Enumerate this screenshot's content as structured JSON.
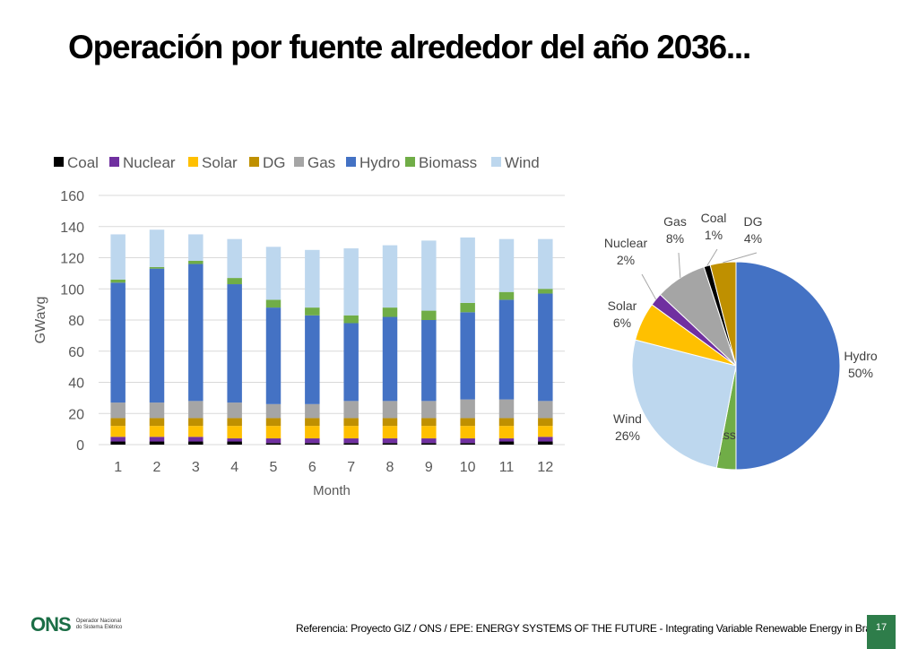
{
  "slide": {
    "title": "Operación por fuente alrededor del año 2036...",
    "reference": "Referencia: Proyecto GIZ / ONS / EPE: ENERGY SYSTEMS OF THE FUTURE - Integrating Variable Renewable Energy in Brazil",
    "page_number": "17",
    "logo_text": "ONS",
    "logo_tagline": "Operador Nacional\ndo Sistema Elétrico"
  },
  "chart_data": [
    {
      "type": "bar",
      "stacked": true,
      "xlabel": "Month",
      "ylabel": "GWavg",
      "ylim": [
        0,
        160
      ],
      "yticks": [
        0,
        20,
        40,
        60,
        80,
        100,
        120,
        140,
        160
      ],
      "legend_position": "top",
      "grid": true,
      "categories": [
        "1",
        "2",
        "3",
        "4",
        "5",
        "6",
        "7",
        "8",
        "9",
        "10",
        "11",
        "12"
      ],
      "series": [
        {
          "name": "Coal",
          "color": "#000000",
          "values": [
            2,
            2,
            2,
            2,
            1,
            1,
            1,
            1,
            1,
            1,
            2,
            2
          ]
        },
        {
          "name": "Nuclear",
          "color": "#7030a0",
          "values": [
            3,
            3,
            3,
            2,
            3,
            3,
            3,
            3,
            3,
            3,
            2,
            3
          ]
        },
        {
          "name": "Solar",
          "color": "#ffc000",
          "values": [
            7,
            7,
            7,
            8,
            8,
            8,
            8,
            8,
            8,
            8,
            8,
            7
          ]
        },
        {
          "name": "DG",
          "color": "#bf9000",
          "values": [
            5,
            5,
            5,
            5,
            5,
            5,
            5,
            5,
            5,
            5,
            5,
            5
          ]
        },
        {
          "name": "Gas",
          "color": "#a5a5a5",
          "values": [
            10,
            10,
            11,
            10,
            9,
            9,
            11,
            11,
            11,
            12,
            12,
            11
          ]
        },
        {
          "name": "Hydro",
          "color": "#4472c4",
          "values": [
            77,
            86,
            88,
            76,
            62,
            57,
            50,
            54,
            52,
            56,
            64,
            69
          ]
        },
        {
          "name": "Biomass",
          "color": "#70ad47",
          "values": [
            2,
            1,
            2,
            4,
            5,
            5,
            5,
            6,
            6,
            6,
            5,
            3
          ]
        },
        {
          "name": "Wind",
          "color": "#bdd7ee",
          "values": [
            29,
            24,
            17,
            25,
            34,
            37,
            43,
            40,
            45,
            42,
            34,
            32
          ]
        }
      ]
    },
    {
      "type": "pie",
      "slices": [
        {
          "name": "Hydro",
          "value": 50,
          "label": "50%",
          "color": "#4472c4"
        },
        {
          "name": "Biomass",
          "value": 3,
          "label": "3%",
          "color": "#70ad47"
        },
        {
          "name": "Wind",
          "value": 26,
          "label": "26%",
          "color": "#bdd7ee"
        },
        {
          "name": "Solar",
          "value": 6,
          "label": "6%",
          "color": "#ffc000"
        },
        {
          "name": "Nuclear",
          "value": 2,
          "label": "2%",
          "color": "#7030a0"
        },
        {
          "name": "Gas",
          "value": 8,
          "label": "8%",
          "color": "#a5a5a5"
        },
        {
          "name": "Coal",
          "value": 1,
          "label": "1%",
          "color": "#000000"
        },
        {
          "name": "DG",
          "value": 4,
          "label": "4%",
          "color": "#bf9000"
        }
      ]
    }
  ]
}
